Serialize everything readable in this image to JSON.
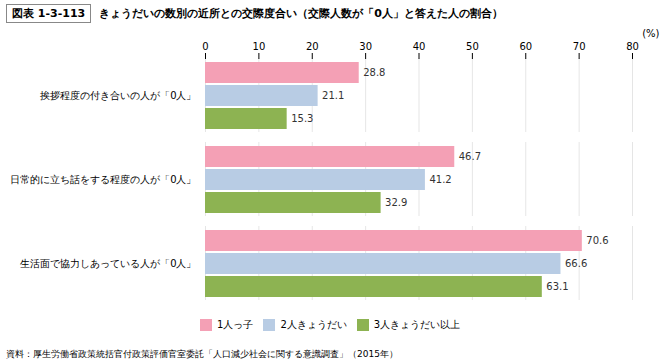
{
  "chart_data": {
    "type": "bar",
    "orientation": "horizontal",
    "title": "きょうだいの数別の近所との交際度合い（交際人数が「0人」と答えた人の割合）",
    "annotations": [
      "図表 1-3-113",
      "資料：厚生労働省政策統括官付政策評価官室委託「人口減少社会に関する意識調査」（2015年）"
    ],
    "xlabel": "(%)",
    "categories": [
      "挨拶程度の付き合いの人が「0人」",
      "日常的に立ち話をする程度の人が「0人」",
      "生活面で協力しあっている人が「0人」"
    ],
    "series": [
      {
        "name": "1人っ子",
        "color": "#F4A0B5",
        "values": [
          28.8,
          46.7,
          70.6
        ]
      },
      {
        "name": "2人きょうだい",
        "color": "#B8CCE4",
        "values": [
          21.1,
          41.2,
          66.6
        ]
      },
      {
        "name": "3人きょうだい以上",
        "color": "#8DB352",
        "values": [
          15.3,
          32.9,
          63.1
        ]
      }
    ],
    "xlim": [
      0,
      80
    ],
    "xticks": [
      0,
      10,
      20,
      30,
      40,
      50,
      60,
      70,
      80
    ],
    "grid": true,
    "legend": "bottom",
    "data_labels": true
  }
}
